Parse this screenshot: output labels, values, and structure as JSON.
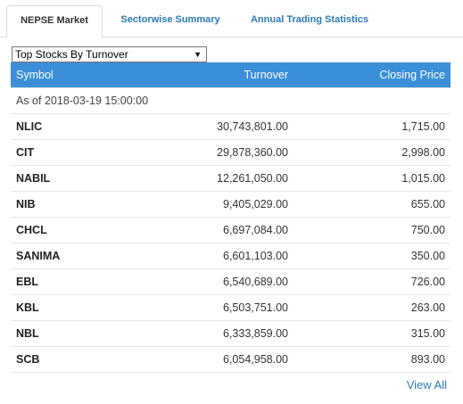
{
  "tabs": [
    {
      "label": "NEPSE Market",
      "active": true
    },
    {
      "label": "Sectorwise Summary",
      "active": false
    },
    {
      "label": "Annual Trading Statistics",
      "active": false
    }
  ],
  "dropdown": {
    "selected": "Top Stocks By Turnover"
  },
  "table": {
    "headers": [
      "Symbol",
      "Turnover",
      "Closing Price"
    ],
    "as_of": "As of 2018-03-19 15:00:00",
    "rows": [
      {
        "symbol": "NLIC",
        "turnover": "30,743,801.00",
        "price": "1,715.00"
      },
      {
        "symbol": "CIT",
        "turnover": "29,878,360.00",
        "price": "2,998.00"
      },
      {
        "symbol": "NABIL",
        "turnover": "12,261,050.00",
        "price": "1,015.00"
      },
      {
        "symbol": "NIB",
        "turnover": "9,405,029.00",
        "price": "655.00"
      },
      {
        "symbol": "CHCL",
        "turnover": "6,697,084.00",
        "price": "750.00"
      },
      {
        "symbol": "SANIMA",
        "turnover": "6,601,103.00",
        "price": "350.00"
      },
      {
        "symbol": "EBL",
        "turnover": "6,540,689.00",
        "price": "726.00"
      },
      {
        "symbol": "KBL",
        "turnover": "6,503,751.00",
        "price": "263.00"
      },
      {
        "symbol": "NBL",
        "turnover": "6,333,859.00",
        "price": "315.00"
      },
      {
        "symbol": "SCB",
        "turnover": "6,054,958.00",
        "price": "893.00"
      }
    ]
  },
  "view_all": "View All",
  "colors": {
    "header_bg": "#3a8fd8",
    "link": "#2a7ab8"
  }
}
